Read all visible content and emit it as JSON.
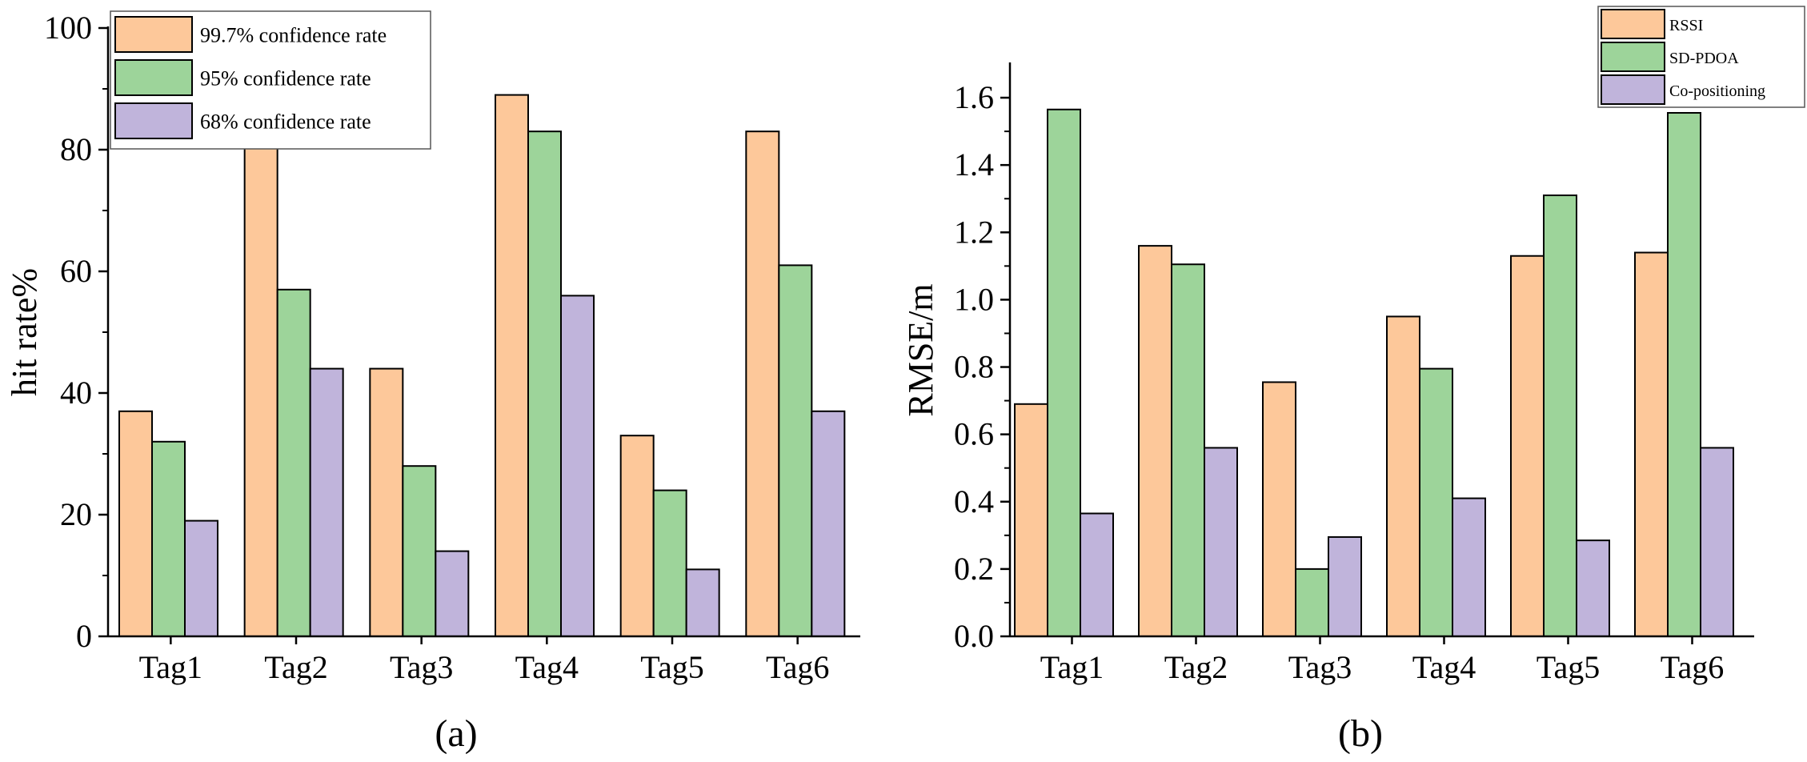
{
  "colors": {
    "orange": "#FDC89A",
    "green": "#9DD49A",
    "purple": "#C0B4DB"
  },
  "chart_data": [
    {
      "type": "bar",
      "panel_label": "(a)",
      "categories": [
        "Tag1",
        "Tag2",
        "Tag3",
        "Tag4",
        "Tag5",
        "Tag6"
      ],
      "series": [
        {
          "name": "99.7% confidence rate",
          "color": "#FDC89A",
          "values": [
            37,
            81,
            44,
            89,
            33,
            83
          ]
        },
        {
          "name": "95% confidence rate",
          "color": "#9DD49A",
          "values": [
            32,
            57,
            28,
            83,
            24,
            61
          ]
        },
        {
          "name": "68% confidence rate",
          "color": "#C0B4DB",
          "values": [
            19,
            44,
            14,
            56,
            11,
            37
          ]
        }
      ],
      "ylabel": "hit rate%",
      "xlabel": "",
      "ylim": [
        0,
        100
      ],
      "yticks": [
        0,
        20,
        40,
        60,
        80,
        100
      ],
      "legend_position": "top-left"
    },
    {
      "type": "bar",
      "panel_label": "(b)",
      "categories": [
        "Tag1",
        "Tag2",
        "Tag3",
        "Tag4",
        "Tag5",
        "Tag6"
      ],
      "series": [
        {
          "name": "RSSI",
          "color": "#FDC89A",
          "values": [
            0.69,
            1.16,
            0.755,
            0.95,
            1.13,
            1.14
          ]
        },
        {
          "name": "SD-PDOA",
          "color": "#9DD49A",
          "values": [
            1.565,
            1.105,
            0.2,
            0.795,
            1.31,
            1.555
          ]
        },
        {
          "name": "Co-positioning",
          "color": "#C0B4DB",
          "values": [
            0.365,
            0.56,
            0.295,
            0.41,
            0.285,
            0.56
          ]
        }
      ],
      "ylabel": "RMSE/m",
      "xlabel": "",
      "ylim": [
        0,
        1.7
      ],
      "yticks": [
        "0.0",
        "0.2",
        "0.4",
        "0.6",
        "0.8",
        "1.0",
        "1.2",
        "1.4",
        "1.6"
      ],
      "legend_position": "top-right"
    }
  ]
}
